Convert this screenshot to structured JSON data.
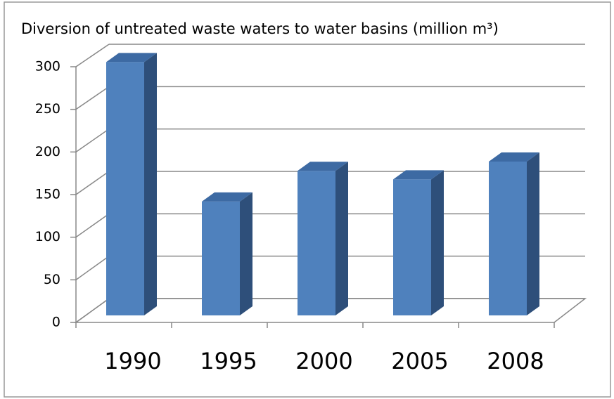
{
  "chart_data": {
    "type": "bar3d",
    "title": "Diversion of untreated waste waters to water basins (million m³)",
    "categories": [
      "1990",
      "1995",
      "2000",
      "2005",
      "2008"
    ],
    "values": [
      298,
      134,
      170,
      160,
      181
    ],
    "color": "#4f81bd",
    "ylim": [
      0,
      300
    ],
    "yticks": [
      0,
      50,
      100,
      150,
      200,
      250,
      300
    ],
    "grid": true
  }
}
